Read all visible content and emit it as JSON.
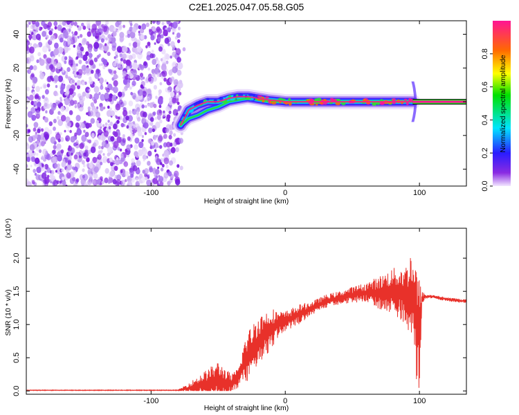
{
  "title": "C2E1.2025.047.05.58.G05",
  "chart_data": [
    {
      "type": "heatmap",
      "xlabel": "Height of straight line (km)",
      "ylabel": "Frequency (Hz)",
      "xlim": [
        -193,
        135
      ],
      "ylim": [
        -50,
        48
      ],
      "x_ticks": [
        -100,
        0,
        100
      ],
      "x_tick_labels": [
        "-100",
        "0",
        "100"
      ],
      "y_ticks": [
        -40,
        -20,
        0,
        20,
        40
      ],
      "y_tick_labels": [
        "-40",
        "-20",
        "0",
        "20",
        "40"
      ],
      "noise_region_x": [
        -193,
        -78
      ],
      "signal_track": {
        "x": [
          -78,
          -72,
          -65,
          -58,
          -50,
          -42,
          -35,
          -28,
          -20,
          -12,
          -5,
          0,
          10,
          20,
          40,
          60,
          80,
          95
        ],
        "y": [
          -14,
          -5,
          -2,
          0,
          0,
          2,
          3,
          3,
          2,
          1,
          0.5,
          0,
          0,
          0,
          0,
          0,
          0,
          0
        ],
        "lower_branch_y": [
          -14,
          -10,
          -8,
          -5,
          -3,
          0,
          1,
          2,
          1,
          0,
          0,
          0,
          0,
          0,
          0,
          0,
          0,
          0
        ]
      },
      "tone_line": {
        "y": 0,
        "x_start": 95,
        "x_end": 135
      },
      "colorbar": {
        "label": "Normalized spectral amplitude",
        "range": [
          0.0,
          1.0
        ],
        "ticks": [
          0.0,
          0.2,
          0.4,
          0.6,
          0.8
        ],
        "tick_labels": [
          "0.0",
          "0.2",
          "0.4",
          "0.6",
          "0.8"
        ]
      },
      "colors": {
        "noise": "#8a2be2",
        "peak": "#ff1493"
      }
    },
    {
      "type": "line",
      "xlabel": "Height of straight line (km)",
      "ylabel": "SNR (10 * v/v)",
      "y_scale_label": "(x10⁴)",
      "xlim": [
        -193,
        135
      ],
      "ylim": [
        -0.05,
        2.45
      ],
      "x_ticks": [
        -100,
        0,
        100
      ],
      "x_tick_labels": [
        "-100",
        "0",
        "100"
      ],
      "y_ticks": [
        0.0,
        0.5,
        1.0,
        1.5,
        2.0
      ],
      "y_tick_labels": [
        "0.0",
        "0.5",
        "1.0",
        "1.5",
        "2.0"
      ],
      "color": "#e8312a",
      "envelope": {
        "x": [
          -193,
          -80,
          -70,
          -60,
          -50,
          -40,
          -35,
          -30,
          -25,
          -20,
          -15,
          -10,
          -5,
          0,
          10,
          20,
          30,
          40,
          50,
          60,
          70,
          80,
          90,
          95,
          98,
          100,
          102,
          105,
          110,
          120,
          135
        ],
        "base": [
          0.01,
          0.01,
          0.05,
          0.1,
          0.15,
          0.1,
          0.2,
          0.45,
          0.6,
          0.75,
          0.85,
          0.95,
          1.0,
          1.05,
          1.15,
          1.25,
          1.35,
          1.4,
          1.45,
          1.48,
          1.48,
          1.5,
          1.45,
          1.4,
          1.0,
          0.8,
          1.4,
          1.42,
          1.42,
          1.38,
          1.35
        ],
        "amp": [
          0.005,
          0.005,
          0.1,
          0.2,
          0.3,
          0.15,
          0.15,
          0.35,
          0.4,
          0.4,
          0.35,
          0.3,
          0.2,
          0.15,
          0.15,
          0.1,
          0.1,
          0.1,
          0.12,
          0.15,
          0.25,
          0.35,
          0.45,
          0.8,
          0.9,
          0.9,
          0.1,
          0.03,
          0.03,
          0.03,
          0.03
        ]
      }
    }
  ]
}
